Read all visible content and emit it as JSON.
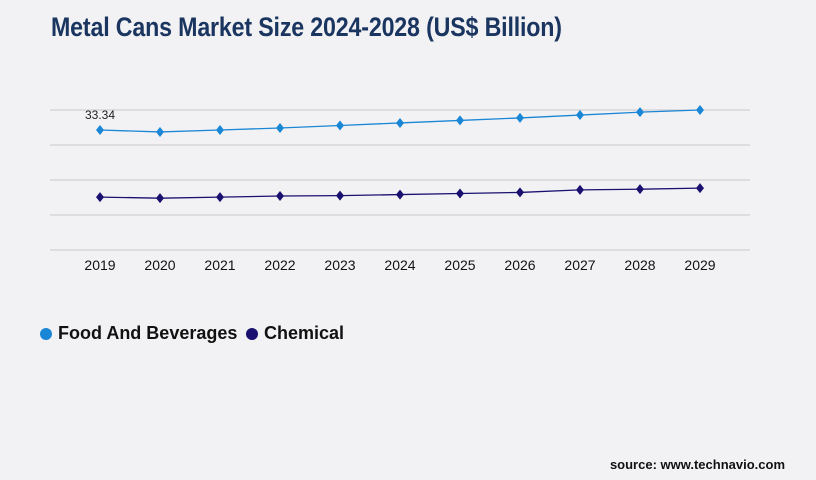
{
  "title": "Metal Cans Market Size 2024-2028 (US$ Billion)",
  "source": "source: www.technavio.com",
  "chart_data": {
    "type": "line",
    "title": "Metal Cans Market Size 2024-2028 (US$ Billion)",
    "categories": [
      "2019",
      "2020",
      "2021",
      "2022",
      "2023",
      "2024",
      "2025",
      "2026",
      "2027",
      "2028",
      "2029"
    ],
    "ylim": [
      0,
      38.9
    ],
    "grid": true,
    "legend_position": "bottom-left",
    "series": [
      {
        "name": "Food And Beverages",
        "color": "#1a86d6",
        "values": [
          33.34,
          32.8,
          33.34,
          33.9,
          34.6,
          35.3,
          36.0,
          36.7,
          37.5,
          38.3,
          38.9
        ]
      },
      {
        "name": "Chemical",
        "color": "#1a1070",
        "values": [
          14.7,
          14.4,
          14.7,
          15.0,
          15.1,
          15.4,
          15.7,
          16.0,
          16.7,
          16.9,
          17.2
        ]
      }
    ],
    "annotations": [
      {
        "series": 0,
        "index": 0,
        "label": "33.34"
      }
    ]
  }
}
